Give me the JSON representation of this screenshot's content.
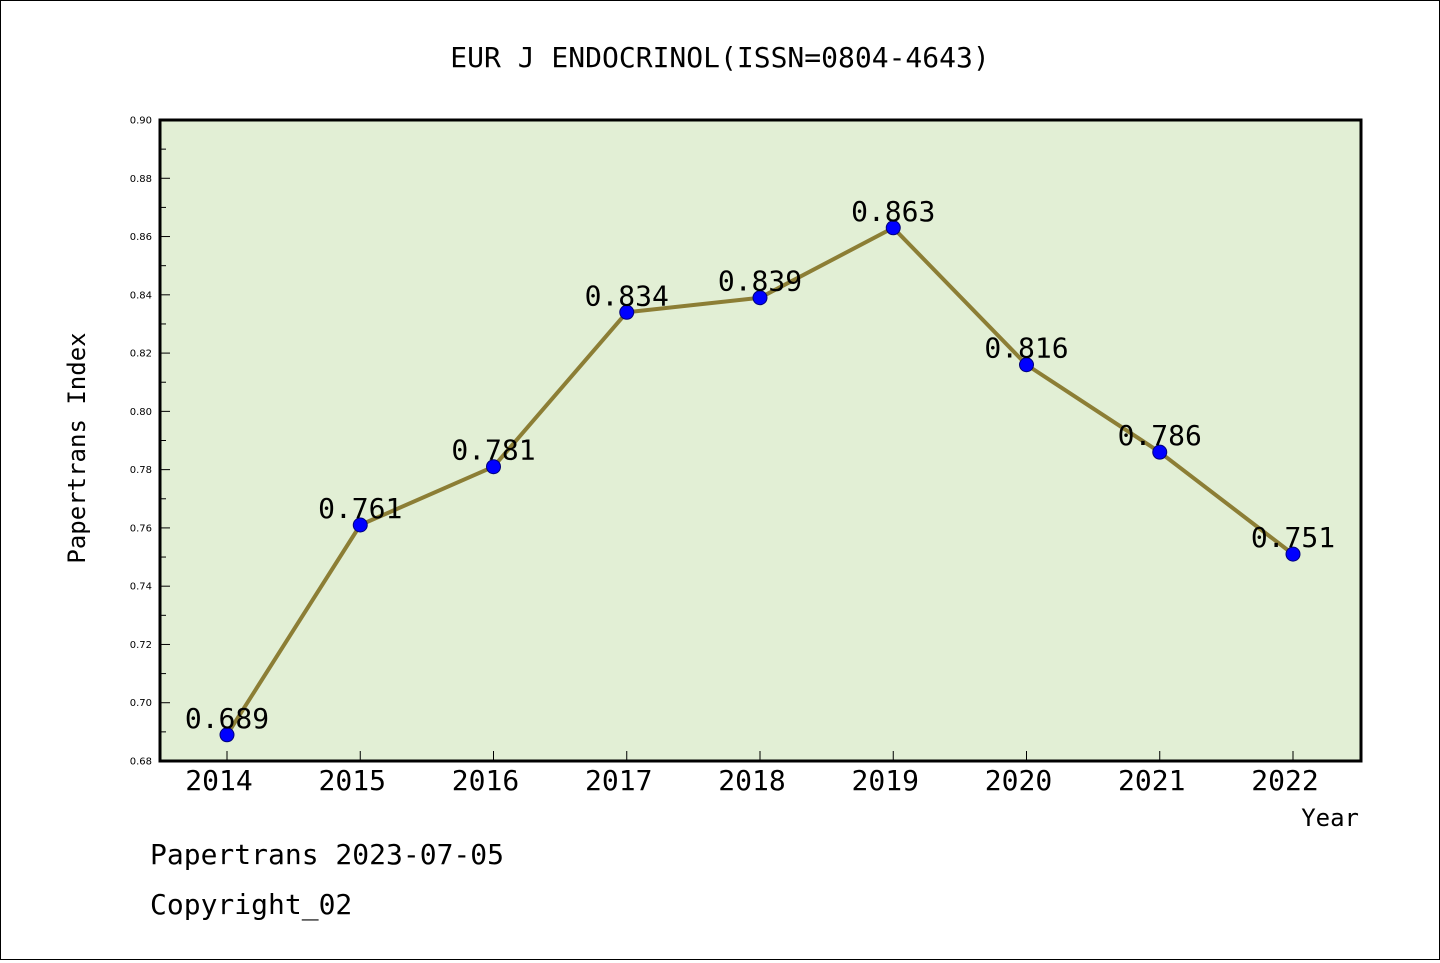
{
  "chart_data": {
    "type": "line",
    "title": "EUR J ENDOCRINOL(ISSN=0804-4643)",
    "xlabel": "Year",
    "ylabel": "Papertrans Index",
    "categories": [
      "2014",
      "2015",
      "2016",
      "2017",
      "2018",
      "2019",
      "2020",
      "2021",
      "2022"
    ],
    "values": [
      0.689,
      0.761,
      0.781,
      0.834,
      0.839,
      0.863,
      0.816,
      0.786,
      0.751
    ],
    "data_labels": [
      "0.689",
      "0.761",
      "0.781",
      "0.834",
      "0.839",
      "0.863",
      "0.816",
      "0.786",
      "0.751"
    ],
    "ylim": [
      0.68,
      0.9
    ],
    "yticks": [
      0.68,
      0.7,
      0.72,
      0.74,
      0.76,
      0.78,
      0.8,
      0.82,
      0.84,
      0.86,
      0.88,
      0.9
    ],
    "ytick_labels": [
      "0.68",
      "0.70",
      "0.72",
      "0.74",
      "0.76",
      "0.78",
      "0.80",
      "0.82",
      "0.84",
      "0.86",
      "0.88",
      "0.90"
    ],
    "grid": false,
    "legend": "none",
    "colors": {
      "plot_background": "#e2efd5",
      "line": "#8c7e35",
      "marker": "#0000ff",
      "axis": "#000000"
    }
  },
  "footer": {
    "source": "Papertrans 2023-07-05",
    "copyright": "Copyright_02"
  }
}
